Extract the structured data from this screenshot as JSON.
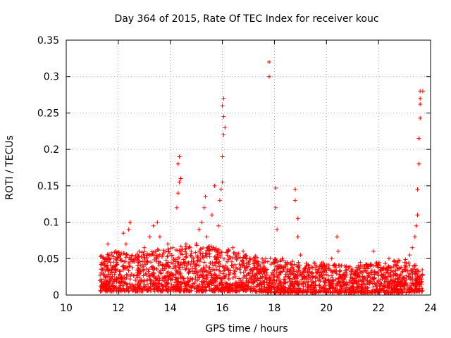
{
  "chart_data": {
    "type": "scatter",
    "title": "Day 364 of 2015, Rate Of TEC Index for receiver kouc",
    "xlabel": "GPS time / hours",
    "ylabel": "ROTI / TECUs",
    "xlim": [
      10,
      24
    ],
    "ylim": [
      0,
      0.35
    ],
    "x_ticks": [
      10,
      12,
      14,
      16,
      18,
      20,
      22,
      24
    ],
    "x_tick_labels": [
      "10",
      "12",
      "14",
      "16",
      "18",
      "20",
      "22",
      "24"
    ],
    "y_ticks": [
      0,
      0.05,
      0.1,
      0.15,
      0.2,
      0.25,
      0.3,
      0.35
    ],
    "y_tick_labels": [
      "0",
      "0.05",
      "0.1",
      "0.15",
      "0.2",
      "0.25",
      "0.3",
      "0.35"
    ],
    "grid": true,
    "marker": "+",
    "marker_color": "#ff0000",
    "series": [
      {
        "name": "ROTI",
        "points": [
          [
            11.3,
            0.02
          ],
          [
            11.4,
            0.035
          ],
          [
            11.5,
            0.05
          ],
          [
            11.6,
            0.07
          ],
          [
            11.7,
            0.045
          ],
          [
            11.9,
            0.06
          ],
          [
            12.1,
            0.055
          ],
          [
            12.2,
            0.085
          ],
          [
            12.3,
            0.07
          ],
          [
            12.4,
            0.09
          ],
          [
            12.45,
            0.1
          ],
          [
            12.6,
            0.05
          ],
          [
            12.8,
            0.06
          ],
          [
            13.0,
            0.065
          ],
          [
            13.2,
            0.08
          ],
          [
            13.35,
            0.095
          ],
          [
            13.5,
            0.1
          ],
          [
            13.6,
            0.08
          ],
          [
            13.7,
            0.055
          ],
          [
            13.9,
            0.07
          ],
          [
            14.1,
            0.065
          ],
          [
            14.25,
            0.12
          ],
          [
            14.3,
            0.14
          ],
          [
            14.35,
            0.155
          ],
          [
            14.3,
            0.18
          ],
          [
            14.35,
            0.19
          ],
          [
            14.4,
            0.16
          ],
          [
            14.6,
            0.07
          ],
          [
            14.8,
            0.06
          ],
          [
            15.0,
            0.07
          ],
          [
            15.1,
            0.09
          ],
          [
            15.2,
            0.1
          ],
          [
            15.3,
            0.12
          ],
          [
            15.35,
            0.135
          ],
          [
            15.4,
            0.08
          ],
          [
            15.6,
            0.11
          ],
          [
            15.7,
            0.15
          ],
          [
            15.85,
            0.095
          ],
          [
            15.9,
            0.13
          ],
          [
            15.95,
            0.145
          ],
          [
            16.0,
            0.155
          ],
          [
            16.0,
            0.19
          ],
          [
            16.05,
            0.22
          ],
          [
            16.05,
            0.245
          ],
          [
            16.0,
            0.26
          ],
          [
            16.05,
            0.27
          ],
          [
            16.1,
            0.23
          ],
          [
            16.2,
            0.06
          ],
          [
            16.4,
            0.065
          ],
          [
            16.6,
            0.05
          ],
          [
            16.8,
            0.06
          ],
          [
            17.0,
            0.045
          ],
          [
            17.2,
            0.05
          ],
          [
            17.4,
            0.04
          ],
          [
            17.6,
            0.045
          ],
          [
            17.8,
            0.32
          ],
          [
            17.8,
            0.3
          ],
          [
            18.05,
            0.147
          ],
          [
            18.05,
            0.12
          ],
          [
            18.1,
            0.09
          ],
          [
            18.3,
            0.05
          ],
          [
            18.5,
            0.045
          ],
          [
            18.8,
            0.145
          ],
          [
            18.8,
            0.13
          ],
          [
            18.9,
            0.105
          ],
          [
            18.9,
            0.08
          ],
          [
            19.0,
            0.055
          ],
          [
            19.3,
            0.04
          ],
          [
            19.6,
            0.04
          ],
          [
            19.9,
            0.035
          ],
          [
            20.2,
            0.05
          ],
          [
            20.4,
            0.08
          ],
          [
            20.45,
            0.06
          ],
          [
            20.7,
            0.04
          ],
          [
            21.0,
            0.035
          ],
          [
            21.3,
            0.045
          ],
          [
            21.6,
            0.04
          ],
          [
            21.8,
            0.06
          ],
          [
            22.1,
            0.035
          ],
          [
            22.4,
            0.05
          ],
          [
            22.7,
            0.04
          ],
          [
            23.0,
            0.045
          ],
          [
            23.2,
            0.055
          ],
          [
            23.3,
            0.065
          ],
          [
            23.4,
            0.08
          ],
          [
            23.45,
            0.095
          ],
          [
            23.5,
            0.11
          ],
          [
            23.5,
            0.145
          ],
          [
            23.55,
            0.18
          ],
          [
            23.55,
            0.215
          ],
          [
            23.6,
            0.243
          ],
          [
            23.6,
            0.262
          ],
          [
            23.6,
            0.27
          ],
          [
            23.6,
            0.28
          ],
          [
            23.7,
            0.28
          ]
        ],
        "dense_band": [
          [
            11.3,
            0.005,
            0.055
          ],
          [
            12.0,
            0.005,
            0.06
          ],
          [
            13.0,
            0.005,
            0.06
          ],
          [
            14.0,
            0.005,
            0.065
          ],
          [
            15.0,
            0.005,
            0.07
          ],
          [
            16.0,
            0.005,
            0.065
          ],
          [
            17.0,
            0.005,
            0.055
          ],
          [
            18.0,
            0.003,
            0.05
          ],
          [
            19.0,
            0.003,
            0.045
          ],
          [
            20.0,
            0.003,
            0.045
          ],
          [
            21.0,
            0.003,
            0.04
          ],
          [
            22.0,
            0.003,
            0.045
          ],
          [
            23.0,
            0.003,
            0.05
          ],
          [
            23.7,
            0.005,
            0.035
          ]
        ]
      }
    ]
  }
}
